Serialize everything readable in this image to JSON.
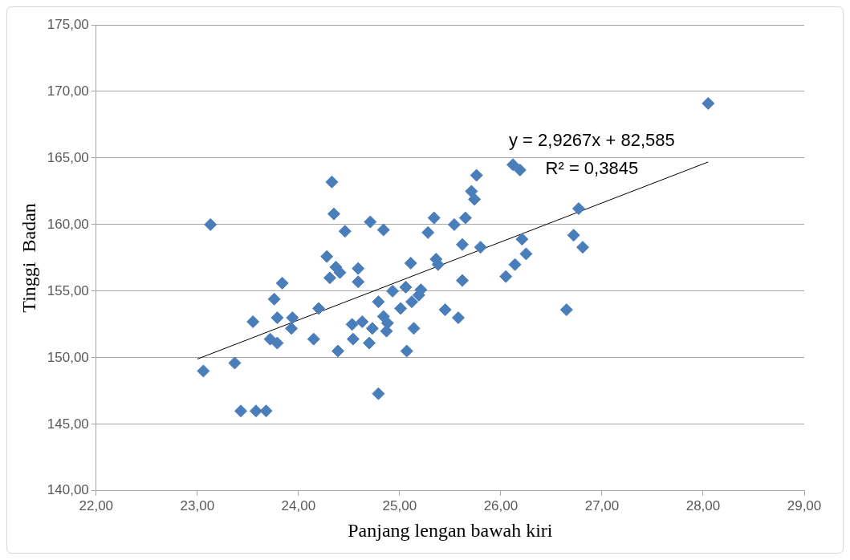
{
  "chart_data": {
    "type": "scatter",
    "xlabel": "Panjang lengan bawah kiri",
    "ylabel": "Tinggi  Badan",
    "annotations": [
      "y = 2,9267x + 82,585",
      "R² = 0,3845"
    ],
    "xlim": [
      22,
      29
    ],
    "ylim": [
      140,
      175
    ],
    "xticks": [
      {
        "value": 22,
        "label": "22,00"
      },
      {
        "value": 23,
        "label": "23,00"
      },
      {
        "value": 24,
        "label": "24,00"
      },
      {
        "value": 25,
        "label": "25,00"
      },
      {
        "value": 26,
        "label": "26,00"
      },
      {
        "value": 27,
        "label": "27,00"
      },
      {
        "value": 28,
        "label": "28,00"
      },
      {
        "value": 29,
        "label": "29,00"
      }
    ],
    "yticks": [
      {
        "value": 140,
        "label": "140,00"
      },
      {
        "value": 145,
        "label": "145,00"
      },
      {
        "value": 150,
        "label": "150,00"
      },
      {
        "value": 155,
        "label": "155,00"
      },
      {
        "value": 160,
        "label": "160,00"
      },
      {
        "value": 165,
        "label": "165,00"
      },
      {
        "value": 170,
        "label": "170,00"
      },
      {
        "value": 175,
        "label": "175,00"
      }
    ],
    "grid": "y",
    "legend": false,
    "series": [
      {
        "type": "scatter",
        "color": "#4a7ebb",
        "marker": "diamond",
        "x": [
          23.06,
          23.13,
          23.37,
          23.43,
          23.55,
          23.58,
          23.68,
          23.72,
          23.76,
          23.79,
          23.79,
          23.84,
          23.93,
          23.94,
          24.15,
          24.2,
          24.28,
          24.31,
          24.33,
          24.35,
          24.37,
          24.41,
          24.39,
          24.46,
          24.53,
          24.54,
          24.59,
          24.59,
          24.63,
          24.71,
          24.7,
          24.73,
          24.79,
          24.79,
          24.84,
          24.84,
          24.87,
          24.88,
          24.93,
          25.01,
          25.06,
          25.07,
          25.11,
          25.12,
          25.14,
          25.19,
          25.21,
          25.28,
          25.34,
          25.36,
          25.38,
          25.45,
          25.54,
          25.58,
          25.62,
          25.62,
          25.65,
          25.71,
          25.74,
          25.76,
          25.8,
          26.05,
          26.12,
          26.14,
          26.19,
          26.21,
          26.25,
          26.65,
          26.72,
          26.77,
          26.81,
          28.05
        ],
        "values": [
          149.0,
          160.0,
          149.6,
          146.0,
          152.7,
          146.0,
          146.0,
          151.4,
          154.4,
          153.0,
          151.1,
          155.6,
          152.2,
          153.0,
          151.4,
          153.7,
          157.6,
          156.0,
          163.2,
          160.8,
          156.8,
          156.4,
          150.5,
          159.5,
          152.5,
          151.4,
          155.7,
          156.7,
          152.7,
          160.2,
          151.1,
          152.2,
          154.2,
          147.3,
          159.6,
          153.1,
          152.0,
          152.6,
          155.0,
          153.7,
          155.3,
          150.5,
          157.1,
          154.2,
          152.2,
          154.7,
          155.1,
          159.4,
          160.5,
          157.4,
          157.0,
          153.6,
          160.0,
          153.0,
          158.5,
          155.8,
          160.5,
          162.5,
          161.9,
          163.7,
          158.3,
          156.1,
          164.5,
          157.0,
          164.1,
          158.9,
          157.8,
          153.6,
          159.2,
          161.2,
          158.3,
          169.1
        ]
      },
      {
        "type": "line",
        "color": "#000000",
        "line_style": "solid",
        "marker": "none",
        "x": [
          23.0,
          28.05
        ],
        "values": [
          149.9,
          164.7
        ]
      }
    ]
  }
}
